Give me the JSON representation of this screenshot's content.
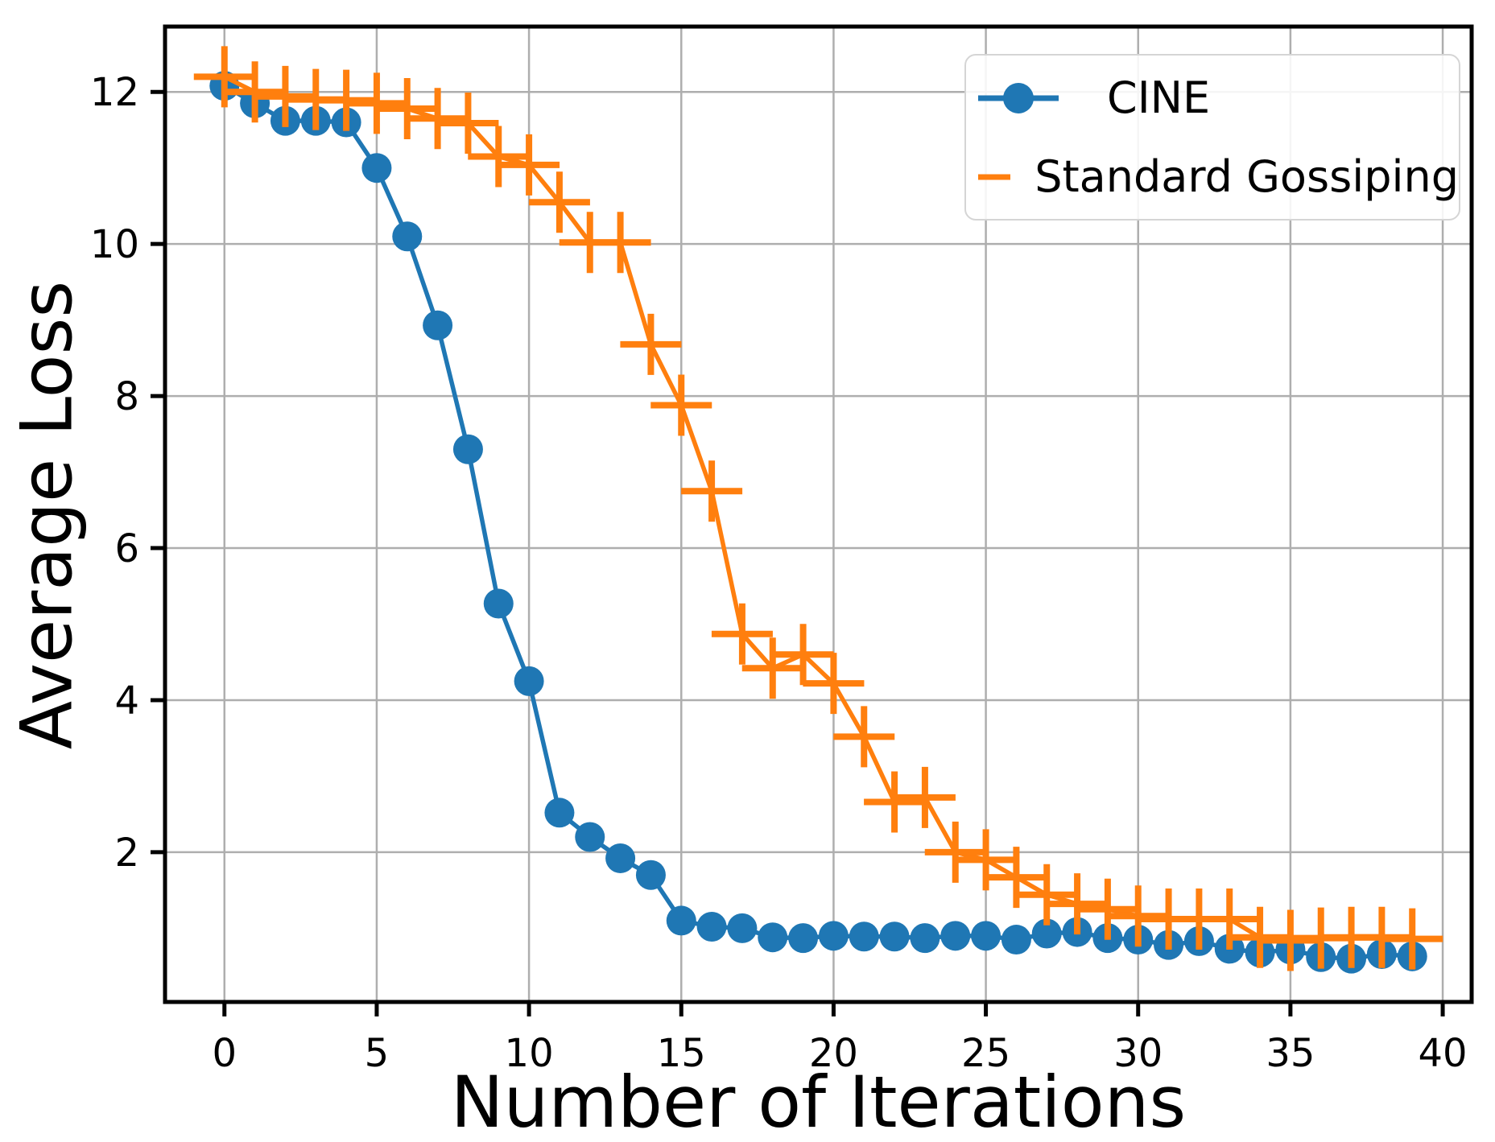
{
  "figure": {
    "background": "#ffffff",
    "text_color": "#000000",
    "grid_color": "#aeaeae",
    "spine_color": "#000000"
  },
  "chart_data": {
    "type": "line",
    "title": "",
    "xlabel": "Number of Iterations",
    "ylabel": "Average Loss",
    "grid": true,
    "legend_position": "upper right",
    "xlim": [
      -1.95,
      40.95
    ],
    "ylim": [
      0.03,
      12.86
    ],
    "xticks": [
      0,
      5,
      10,
      15,
      20,
      25,
      30,
      35,
      40
    ],
    "yticks": [
      2,
      4,
      6,
      8,
      10,
      12
    ],
    "x": [
      0,
      1,
      2,
      3,
      4,
      5,
      6,
      7,
      8,
      9,
      10,
      11,
      12,
      13,
      14,
      15,
      16,
      17,
      18,
      19,
      20,
      21,
      22,
      23,
      24,
      25,
      26,
      27,
      28,
      29,
      30,
      31,
      32,
      33,
      34,
      35,
      36,
      37,
      38,
      39
    ],
    "series": [
      {
        "name": "CINE",
        "color": "#1f77b4",
        "marker": "circle",
        "values": [
          12.08,
          11.85,
          11.62,
          11.62,
          11.6,
          11.0,
          10.1,
          8.93,
          7.3,
          5.27,
          4.25,
          2.52,
          2.2,
          1.92,
          1.7,
          1.1,
          1.02,
          1.0,
          0.88,
          0.87,
          0.9,
          0.89,
          0.89,
          0.87,
          0.9,
          0.9,
          0.85,
          0.93,
          0.95,
          0.87,
          0.85,
          0.78,
          0.83,
          0.73,
          0.68,
          0.72,
          0.62,
          0.6,
          0.66,
          0.63
        ]
      },
      {
        "name": "Standard Gossiping",
        "color": "#ff7f0e",
        "marker": "plus",
        "values": [
          12.2,
          12.0,
          11.94,
          11.9,
          11.89,
          11.85,
          11.78,
          11.65,
          11.59,
          11.15,
          11.04,
          10.55,
          10.02,
          10.02,
          8.68,
          7.88,
          6.75,
          4.87,
          4.42,
          4.6,
          4.22,
          3.52,
          2.66,
          2.72,
          2.0,
          1.9,
          1.67,
          1.44,
          1.32,
          1.25,
          1.16,
          1.12,
          1.12,
          1.12,
          0.88,
          0.84,
          0.87,
          0.88,
          0.88,
          0.86
        ]
      }
    ]
  }
}
